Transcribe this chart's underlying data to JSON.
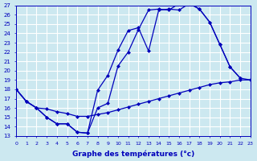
{
  "xlabel": "Graphe des températures (°c)",
  "background_color": "#cce8f0",
  "grid_color": "#ffffff",
  "line_color": "#0000bb",
  "ylim": [
    13,
    27
  ],
  "xlim": [
    0,
    23
  ],
  "yticks": [
    13,
    14,
    15,
    16,
    17,
    18,
    19,
    20,
    21,
    22,
    23,
    24,
    25,
    26,
    27
  ],
  "xticks": [
    0,
    1,
    2,
    3,
    4,
    5,
    6,
    7,
    8,
    9,
    10,
    11,
    12,
    13,
    14,
    15,
    16,
    17,
    18,
    19,
    20,
    21,
    22,
    23
  ],
  "line1_x": [
    0,
    1,
    2,
    3,
    4,
    5,
    6,
    7,
    8,
    9,
    10,
    11,
    12,
    13,
    14,
    15,
    16,
    17,
    18,
    19,
    20,
    21,
    22,
    23
  ],
  "line1_y": [
    18.0,
    16.7,
    16.0,
    15.9,
    15.6,
    15.4,
    15.1,
    15.1,
    15.3,
    15.5,
    15.8,
    16.1,
    16.4,
    16.7,
    17.0,
    17.3,
    17.6,
    17.9,
    18.2,
    18.5,
    18.7,
    18.8,
    19.0,
    19.0
  ],
  "line2_x": [
    0,
    1,
    2,
    3,
    4,
    5,
    6,
    7,
    8,
    9,
    10,
    11,
    12,
    13,
    14,
    15,
    16,
    17,
    18,
    19,
    20,
    21,
    22
  ],
  "line2_y": [
    18.0,
    16.7,
    16.0,
    15.0,
    14.3,
    14.3,
    13.4,
    13.3,
    17.9,
    19.5,
    22.2,
    24.3,
    24.6,
    22.1,
    26.5,
    26.6,
    26.5,
    27.2,
    26.6,
    25.2,
    22.8,
    20.4,
    19.2
  ],
  "line3_x": [
    0,
    1,
    2,
    3,
    4,
    5,
    6,
    7,
    8,
    9,
    10,
    11,
    12,
    13,
    14,
    15,
    16,
    17,
    18,
    19,
    20,
    21,
    22,
    23
  ],
  "line3_y": [
    18.0,
    16.7,
    16.0,
    15.0,
    14.3,
    14.3,
    13.4,
    13.3,
    16.0,
    16.5,
    20.5,
    22.0,
    24.4,
    26.5,
    26.6,
    26.5,
    27.2,
    27.2,
    26.6,
    25.2,
    22.8,
    20.4,
    19.2,
    19.0
  ],
  "marker": "D",
  "marker_size": 2.5,
  "linewidth": 0.9
}
